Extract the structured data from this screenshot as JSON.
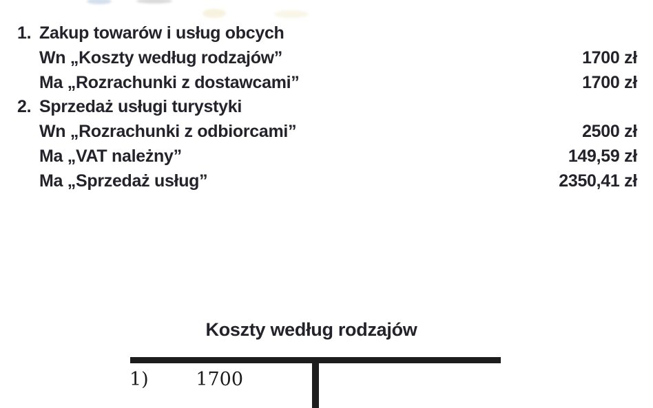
{
  "colors": {
    "background": "#ffffff",
    "text": "#24222a",
    "rule": "#1d1d1d",
    "figure": "#1b1b1b"
  },
  "journal": {
    "entries": [
      {
        "number": "1.",
        "title": "Zakup towarów i usług obcych",
        "lines": [
          {
            "label": "Wn „Koszty według rodzajów”",
            "amount": "1700 zł"
          },
          {
            "label": "Ma „Rozrachunki z dostawcami”",
            "amount": "1700 zł"
          }
        ]
      },
      {
        "number": "2.",
        "title": "Sprzedaż usługi turystyki",
        "lines": [
          {
            "label": "Wn „Rozrachunki z odbiorcami”",
            "amount": "2500 zł"
          },
          {
            "label": "Ma „VAT należny”",
            "amount": "149,59 zł"
          },
          {
            "label": "Ma „Sprzedaż usług”",
            "amount": "2350,41 zł"
          }
        ]
      }
    ]
  },
  "t_account": {
    "title": "Koszty według rodzajów",
    "debit_entries": [
      {
        "ref": "1)",
        "amount": "1700"
      }
    ],
    "credit_entries": []
  }
}
